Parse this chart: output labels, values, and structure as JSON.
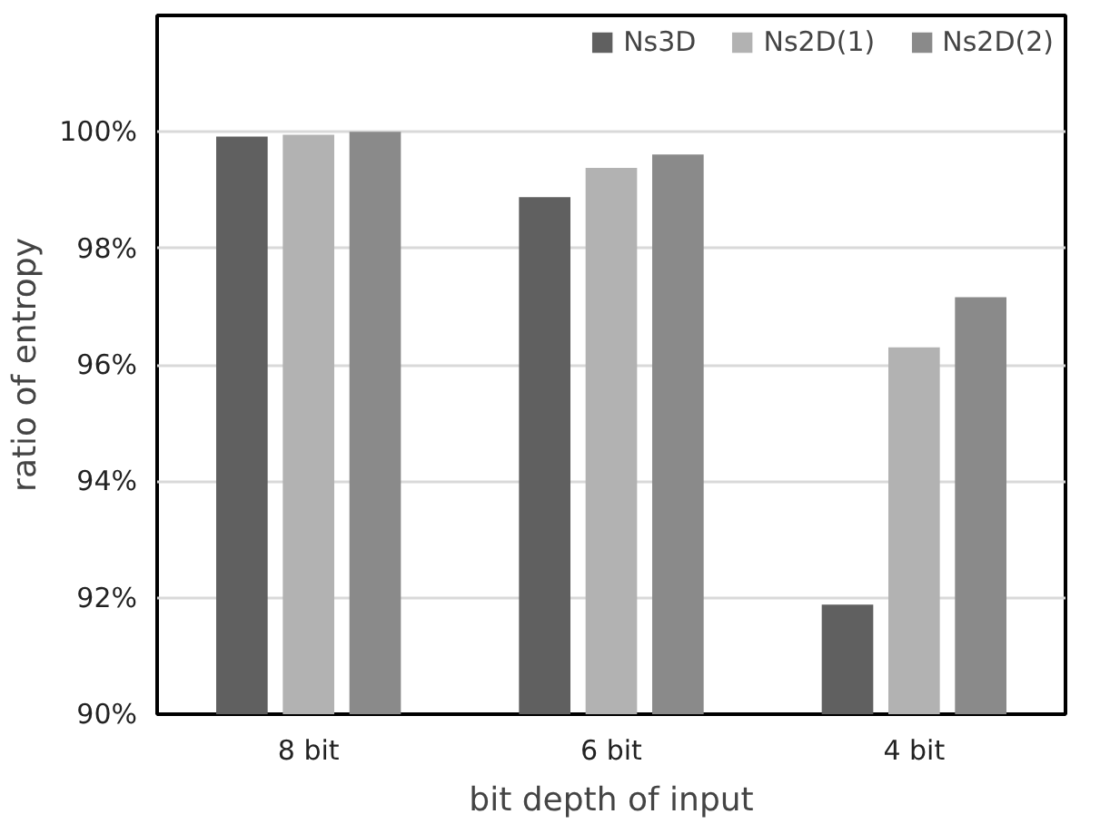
{
  "chart_data": {
    "type": "bar",
    "xlabel": "bit depth of input",
    "ylabel": "ratio of entropy",
    "categories": [
      "8 bit",
      "6 bit",
      "4 bit"
    ],
    "series": [
      {
        "name": "Ns3D",
        "color": "#606060",
        "values": [
          99.92,
          98.88,
          91.88
        ]
      },
      {
        "name": "Ns2D(1)",
        "color": "#b2b2b2",
        "values": [
          99.95,
          99.38,
          96.3
        ]
      },
      {
        "name": "Ns2D(2)",
        "color": "#8a8a8a",
        "values": [
          100.0,
          99.61,
          97.16
        ]
      }
    ],
    "ylim": [
      90,
      102
    ],
    "yticks": [
      {
        "value": 90,
        "label": "90%"
      },
      {
        "value": 92,
        "label": "92%"
      },
      {
        "value": 94,
        "label": "94%"
      },
      {
        "value": 96,
        "label": "96%"
      },
      {
        "value": 98,
        "label": "98%"
      },
      {
        "value": 100,
        "label": "100%"
      }
    ],
    "grid": "y",
    "legend": "top right"
  }
}
